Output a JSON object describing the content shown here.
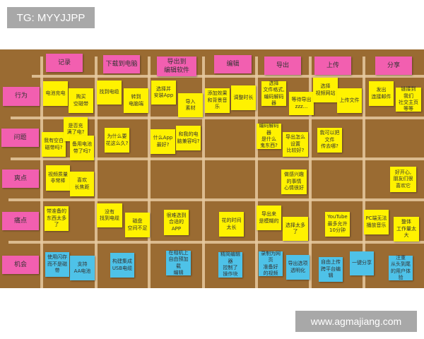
{
  "watermark_top": "TG: MYYJJPP",
  "watermark_bottom": "www.agmajiang.com",
  "colors": {
    "board": "#9a6b32",
    "header_note": "#f25fb0",
    "yellow_note": "#fff200",
    "blue_note": "#4ec2e8"
  },
  "stages": [
    "记录",
    "下载到电脑",
    "导出到\n编辑软件",
    "编辑",
    "导出",
    "上传",
    "分享"
  ],
  "rows": [
    "行为",
    "问题",
    "爽点",
    "痛点",
    "机会"
  ],
  "actions": [
    "电池充电",
    "购买\n空磁带",
    "找到电缆",
    "转到\n电脑端",
    "选择并\n安装App",
    "导入\n素材",
    "添加效果\n和背景音乐",
    "调整时长",
    "选择\n文件格式,\n编码解码器",
    "等待导出\nzzz...",
    "选择\n视频网站",
    "上传文件",
    "发出\n连接邮件",
    "链接到\n我们\n社交主页\n等等"
  ],
  "questions": [
    "是否充\n满了电?",
    "我有空白\n磁带吗?",
    "备用电池\n带了吗?",
    "为什么要\n花这么久?",
    "什么App\n最好?",
    "和我的电\n脑兼容吗?",
    "编码解码器\n是什么\n鬼东西?",
    "导出怎么\n设置\n比较好?",
    "我可以把\n文件\n传去哪?"
  ],
  "highlights": [
    "视频质量\n非常棒",
    "喜欢\n长焦距",
    "做感兴趣\n的事情\n心情很好",
    "好开心,\n朋友们很\n喜欢它"
  ],
  "pain_points": [
    "带准备的\n东西太多了",
    "没有\n找到电缆",
    "磁盘\n空间不足",
    "很难选到\n合适的APP",
    "花的时间\n太长",
    "导出来\n是模糊的",
    "选择太多了",
    "YouTube\n最多允许\n10分钟",
    "PC端无法\n播放音乐",
    "整体\n工作量太大"
  ],
  "opportunities": [
    "使用闪存\n而不是磁带",
    "支持\nAA电池",
    "构建集成\nUSB电缆",
    "在相机上\n自由预加载\n编辑",
    "精简编辑器\n控制了\n操作块",
    "录制为网页\n准备好\n的视频",
    "导出选项\n透明化",
    "自由上传\n跨平台编辑",
    "一键分享",
    "注重\n从头到尾\n的用户体验"
  ]
}
